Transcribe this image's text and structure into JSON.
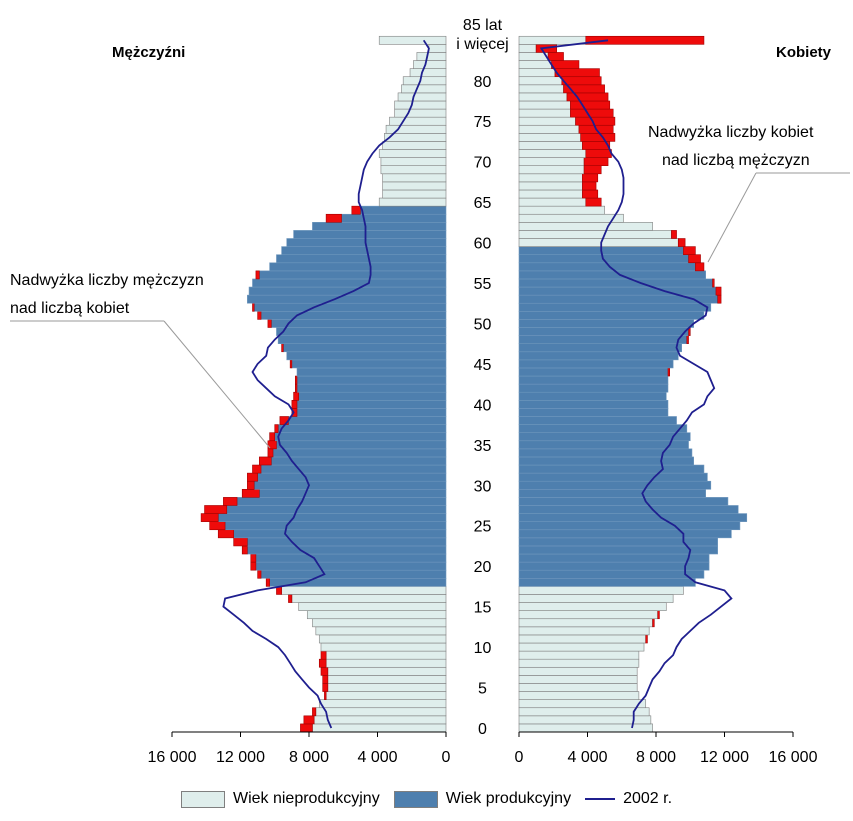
{
  "chart_data": {
    "type": "population_pyramid",
    "left_title": "Mężczyźni",
    "right_title": "Kobiety",
    "age_tick_labels": [
      "0",
      "5",
      "10",
      "15",
      "20",
      "25",
      "30",
      "35",
      "40",
      "45",
      "50",
      "55",
      "60",
      "65",
      "70",
      "75",
      "80",
      "85 lat",
      "i więcej"
    ],
    "x_tick_labels_left": [
      "16 000",
      "12 000",
      "8 000",
      "4 000",
      "0"
    ],
    "x_tick_labels_right": [
      "0",
      "4 000",
      "8 000",
      "12 000",
      "16 000"
    ],
    "xlim": [
      0,
      16000
    ],
    "annotations": {
      "men_surplus": [
        "Nadwyżka liczby mężczyzn",
        "nad liczbą kobiet"
      ],
      "women_surplus": [
        "Nadwyżka liczby kobiet",
        "nad liczbą mężczyzn"
      ]
    },
    "legend": {
      "nonproductive": "Wiek nieprodukcyjny",
      "productive": "Wiek produkcyjny",
      "line_2002": "2002 r."
    },
    "colors": {
      "nonproductive": "#dfeeec",
      "productive": "#4e7fae",
      "surplus": "#ee0b0b",
      "line_2002": "#1f1f8f",
      "bar_edge": "#7f7f7f"
    },
    "productive_age_men": [
      18,
      64
    ],
    "productive_age_women": [
      18,
      59
    ],
    "ages": [
      0,
      1,
      2,
      3,
      4,
      5,
      6,
      7,
      8,
      9,
      10,
      11,
      12,
      13,
      14,
      15,
      16,
      17,
      18,
      19,
      20,
      21,
      22,
      23,
      24,
      25,
      26,
      27,
      28,
      29,
      30,
      31,
      32,
      33,
      34,
      35,
      36,
      37,
      38,
      39,
      40,
      41,
      42,
      43,
      44,
      45,
      46,
      47,
      48,
      49,
      50,
      51,
      52,
      53,
      54,
      55,
      56,
      57,
      58,
      59,
      60,
      61,
      62,
      63,
      64,
      65,
      66,
      67,
      68,
      69,
      70,
      71,
      72,
      73,
      74,
      75,
      76,
      77,
      78,
      79,
      80,
      81,
      82,
      83,
      84,
      85
    ],
    "men": [
      8500,
      8300,
      7800,
      7400,
      7100,
      7200,
      7200,
      7300,
      7400,
      7300,
      7300,
      7400,
      7600,
      7800,
      8100,
      8600,
      9200,
      9900,
      10500,
      11000,
      11400,
      11400,
      11900,
      12400,
      13300,
      13800,
      14300,
      14100,
      13000,
      11900,
      11600,
      11600,
      11300,
      10900,
      10400,
      10400,
      10300,
      10000,
      9700,
      9000,
      9000,
      8900,
      8800,
      8800,
      8700,
      9100,
      9300,
      9600,
      9800,
      9900,
      10400,
      11000,
      11300,
      11600,
      11500,
      11300,
      11100,
      10300,
      9900,
      9600,
      9300,
      8900,
      7800,
      7000,
      5500,
      3900,
      3700,
      3700,
      3700,
      3800,
      3800,
      3900,
      3700,
      3600,
      3500,
      3300,
      3000,
      3000,
      2800,
      2600,
      2500,
      2100,
      1900,
      1700,
      1000,
      3900
    ],
    "women": [
      7800,
      7700,
      7600,
      7400,
      7000,
      6900,
      6900,
      6900,
      7000,
      7000,
      7300,
      7500,
      7600,
      7900,
      8200,
      8600,
      9000,
      9600,
      10300,
      10800,
      11100,
      11100,
      11600,
      11600,
      12400,
      12900,
      13300,
      12800,
      12200,
      10900,
      11200,
      11000,
      10800,
      10200,
      10100,
      9900,
      10000,
      9800,
      9200,
      8700,
      8700,
      8600,
      8700,
      8700,
      8800,
      9000,
      9300,
      9500,
      9900,
      10000,
      10200,
      10800,
      11200,
      11800,
      11800,
      11400,
      10900,
      10800,
      10600,
      10300,
      9700,
      9200,
      7800,
      6100,
      5000,
      4800,
      4600,
      4500,
      4600,
      4800,
      5200,
      5400,
      5300,
      5600,
      5500,
      5600,
      5500,
      5300,
      5200,
      5000,
      4800,
      4700,
      3500,
      2600,
      2200,
      10800
    ],
    "men_2002": [
      6700,
      6900,
      7000,
      7300,
      7500,
      8000,
      8400,
      8800,
      9100,
      9400,
      9800,
      10500,
      11300,
      11800,
      12400,
      13000,
      12900,
      11000,
      8200,
      7100,
      7400,
      7700,
      8500,
      9000,
      9400,
      9300,
      8900,
      8700,
      8400,
      8200,
      8000,
      8200,
      8600,
      9000,
      9300,
      9700,
      9800,
      9600,
      9200,
      8900,
      9200,
      10000,
      10500,
      11000,
      11300,
      11000,
      10500,
      10400,
      10000,
      9500,
      9200,
      8700,
      7700,
      6500,
      5400,
      4500,
      4400,
      4400,
      4500,
      4600,
      4700,
      4700,
      4700,
      4800,
      4900,
      5100,
      5100,
      5000,
      4900,
      4800,
      4600,
      4300,
      3900,
      3300,
      2800,
      2500,
      2200,
      2000,
      1900,
      1700,
      1500,
      1400,
      1200,
      1100,
      1000,
      1300
    ],
    "women_2002": [
      6600,
      6700,
      6700,
      7000,
      7400,
      7600,
      7800,
      8200,
      8500,
      9000,
      9200,
      9500,
      10000,
      10500,
      11200,
      11800,
      12400,
      12000,
      10300,
      9700,
      9700,
      9900,
      10000,
      9600,
      9600,
      9100,
      8300,
      7800,
      7400,
      7200,
      7500,
      7900,
      8400,
      8300,
      8400,
      8800,
      9000,
      9400,
      9800,
      10100,
      10800,
      11000,
      11400,
      11200,
      11000,
      10200,
      9400,
      9200,
      9300,
      9700,
      10200,
      10900,
      11000,
      10200,
      8500,
      7100,
      5900,
      5300,
      4900,
      4800,
      4800,
      5000,
      5200,
      5500,
      5800,
      6000,
      6100,
      6100,
      6100,
      6000,
      5800,
      5400,
      5200,
      4900,
      4500,
      4300,
      4000,
      3700,
      3400,
      3000,
      2600,
      2200,
      1900,
      1600,
      1300,
      5200
    ]
  }
}
